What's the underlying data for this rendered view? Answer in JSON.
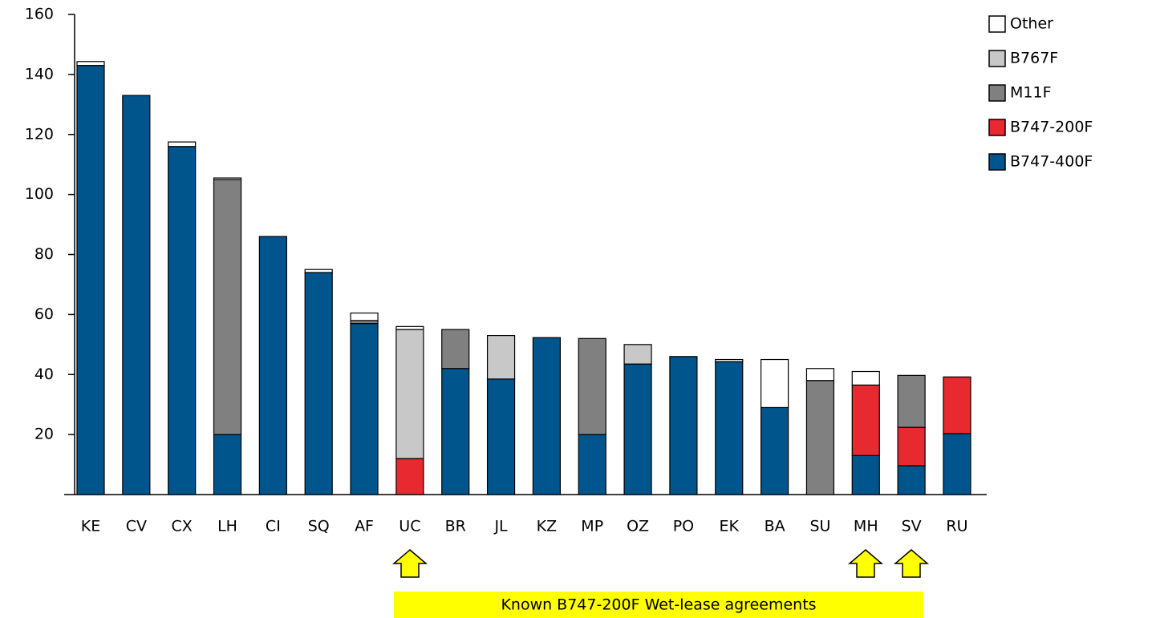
{
  "chart_data": {
    "type": "stacked_bar",
    "categories": [
      "KE",
      "CV",
      "CX",
      "LH",
      "CI",
      "SQ",
      "AF",
      "UC",
      "BR",
      "JL",
      "KZ",
      "MP",
      "OZ",
      "PO",
      "EK",
      "BA",
      "SU",
      "MH",
      "SV",
      "RU"
    ],
    "series": [
      {
        "name": "B747-400F",
        "color": "#00558c",
        "values": [
          143,
          133,
          116,
          20,
          86,
          74,
          57,
          0,
          42,
          38.5,
          52.3,
          20,
          43.5,
          46,
          44.3,
          29,
          0,
          13,
          9.6,
          20.3
        ]
      },
      {
        "name": "B747-200F",
        "color": "#e8292f",
        "values": [
          0,
          0,
          0,
          0,
          0,
          0,
          0,
          12,
          0,
          0,
          0,
          0,
          0,
          0,
          0,
          0,
          0,
          23.5,
          12.8,
          18.9
        ]
      },
      {
        "name": "M11F",
        "color": "#808080",
        "values": [
          0,
          0,
          0,
          85,
          0,
          0,
          1,
          0,
          13,
          0,
          0,
          32,
          0,
          0,
          0,
          0,
          38,
          0,
          17.3,
          0
        ]
      },
      {
        "name": "B767F",
        "color": "#c8c8c8",
        "values": [
          0,
          0,
          0,
          0,
          0,
          0,
          0,
          43,
          0,
          14.5,
          0,
          0,
          6.5,
          0,
          0,
          0,
          0,
          0,
          0,
          0
        ]
      },
      {
        "name": "Other",
        "color": "#ffffff",
        "values": [
          1.3,
          0,
          1.5,
          0.5,
          0,
          1,
          2.5,
          1,
          0,
          0,
          0,
          0,
          0,
          0,
          0.7,
          16,
          4,
          4.5,
          0,
          0
        ]
      }
    ],
    "ylim": [
      0,
      160
    ],
    "yticks": [
      20,
      40,
      60,
      80,
      100,
      120,
      140,
      160
    ],
    "legend": "top-right",
    "annotation": "Known B747-200F Wet-lease  agreements"
  }
}
